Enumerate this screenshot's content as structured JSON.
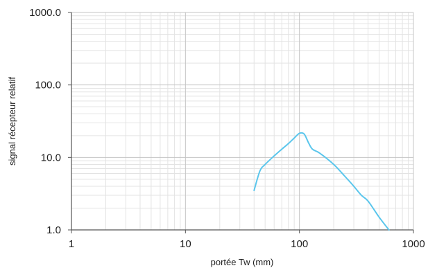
{
  "chart_data": {
    "type": "line",
    "title": "",
    "xlabel": "portée Tw (mm)",
    "ylabel": "signal récepteur relatif",
    "x_scale": "log",
    "y_scale": "log",
    "xlim": [
      1,
      1000
    ],
    "ylim": [
      1,
      1000
    ],
    "x_ticks": [
      1,
      10,
      100,
      1000
    ],
    "x_tick_labels": [
      "1",
      "10",
      "100",
      "1000"
    ],
    "y_ticks": [
      1,
      10,
      100,
      1000
    ],
    "y_tick_labels": [
      "1.0",
      "10.0",
      "100.0",
      "1000.0"
    ],
    "grid": true,
    "legend": "none",
    "series": [
      {
        "color": "#5bc6ec",
        "x": [
          40,
          45,
          50,
          60,
          70,
          80,
          90,
          100,
          110,
          120,
          130,
          150,
          200,
          250,
          300,
          350,
          400,
          500,
          610
        ],
        "y": [
          3.5,
          6.5,
          8.0,
          10.5,
          13.0,
          15.5,
          18.5,
          21.5,
          21.0,
          16.0,
          13.0,
          11.5,
          8.0,
          5.5,
          4.0,
          3.0,
          2.5,
          1.5,
          1.0
        ]
      }
    ]
  }
}
